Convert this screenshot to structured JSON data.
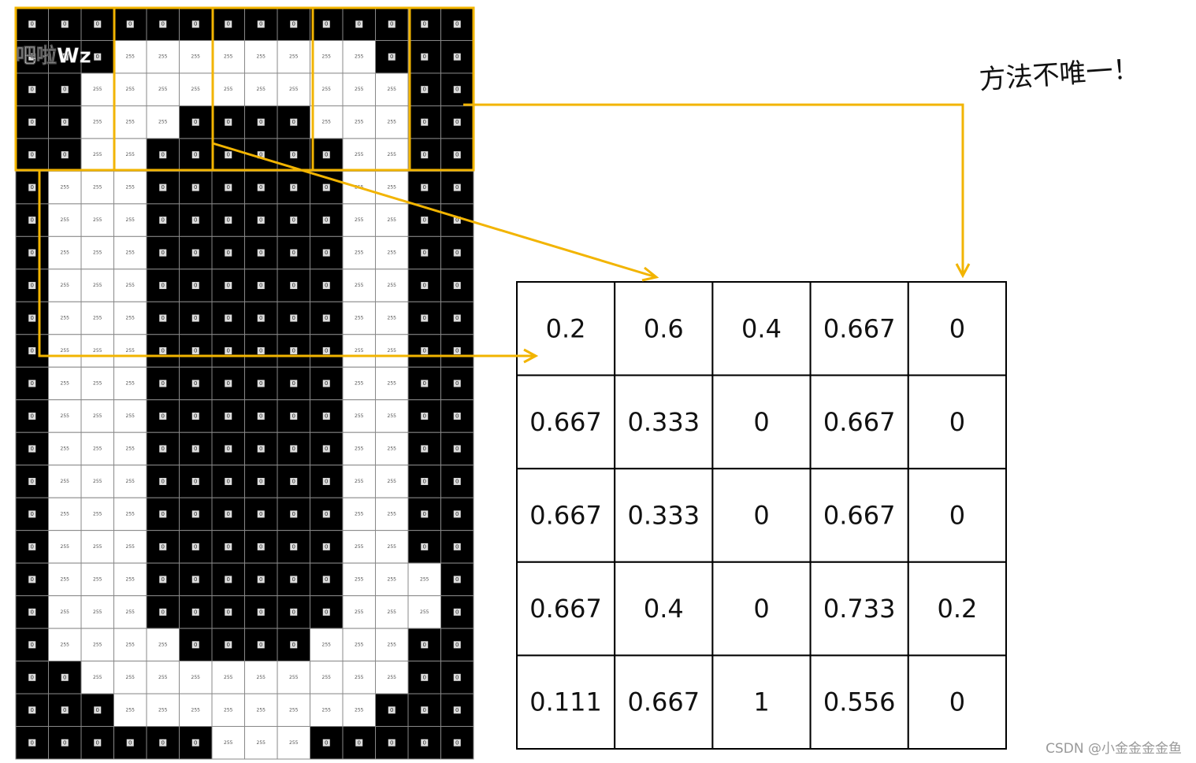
{
  "pixel_grid": {
    "rows": [
      [
        0,
        0,
        0,
        0,
        0,
        0,
        0,
        0,
        0,
        0,
        0,
        0,
        0,
        0
      ],
      [
        0,
        0,
        0,
        255,
        255,
        255,
        255,
        255,
        255,
        255,
        255,
        0,
        0,
        0
      ],
      [
        0,
        0,
        255,
        255,
        255,
        255,
        255,
        255,
        255,
        255,
        255,
        255,
        0,
        0
      ],
      [
        0,
        0,
        255,
        255,
        255,
        0,
        0,
        0,
        0,
        255,
        255,
        255,
        0,
        0
      ],
      [
        0,
        0,
        255,
        255,
        0,
        0,
        0,
        0,
        0,
        0,
        255,
        255,
        0,
        0
      ],
      [
        0,
        255,
        255,
        255,
        0,
        0,
        0,
        0,
        0,
        0,
        255,
        255,
        0,
        0
      ],
      [
        0,
        255,
        255,
        255,
        0,
        0,
        0,
        0,
        0,
        0,
        255,
        255,
        0,
        0
      ],
      [
        0,
        255,
        255,
        255,
        0,
        0,
        0,
        0,
        0,
        0,
        255,
        255,
        0,
        0
      ],
      [
        0,
        255,
        255,
        255,
        0,
        0,
        0,
        0,
        0,
        0,
        255,
        255,
        0,
        0
      ],
      [
        0,
        255,
        255,
        255,
        0,
        0,
        0,
        0,
        0,
        0,
        255,
        255,
        0,
        0
      ],
      [
        0,
        255,
        255,
        255,
        0,
        0,
        0,
        0,
        0,
        0,
        255,
        255,
        0,
        0
      ],
      [
        0,
        255,
        255,
        255,
        0,
        0,
        0,
        0,
        0,
        0,
        255,
        255,
        0,
        0
      ],
      [
        0,
        255,
        255,
        255,
        0,
        0,
        0,
        0,
        0,
        0,
        255,
        255,
        0,
        0
      ],
      [
        0,
        255,
        255,
        255,
        0,
        0,
        0,
        0,
        0,
        0,
        255,
        255,
        0,
        0
      ],
      [
        0,
        255,
        255,
        255,
        0,
        0,
        0,
        0,
        0,
        0,
        255,
        255,
        0,
        0
      ],
      [
        0,
        255,
        255,
        255,
        0,
        0,
        0,
        0,
        0,
        0,
        255,
        255,
        0,
        0
      ],
      [
        0,
        255,
        255,
        255,
        0,
        0,
        0,
        0,
        0,
        0,
        255,
        255,
        0,
        0
      ],
      [
        0,
        255,
        255,
        255,
        0,
        0,
        0,
        0,
        0,
        0,
        255,
        255,
        255,
        0
      ],
      [
        0,
        255,
        255,
        255,
        0,
        0,
        0,
        0,
        0,
        0,
        255,
        255,
        255,
        0
      ],
      [
        0,
        255,
        255,
        255,
        255,
        0,
        0,
        0,
        0,
        255,
        255,
        255,
        0,
        0
      ],
      [
        0,
        0,
        255,
        255,
        255,
        255,
        255,
        255,
        255,
        255,
        255,
        255,
        0,
        0
      ],
      [
        0,
        0,
        0,
        255,
        255,
        255,
        255,
        255,
        255,
        255,
        255,
        0,
        0,
        0
      ],
      [
        0,
        0,
        0,
        0,
        0,
        0,
        255,
        255,
        255,
        0,
        0,
        0,
        0,
        0
      ]
    ]
  },
  "feature_matrix": {
    "rows": [
      [
        0.2,
        0.6,
        0.4,
        0.667,
        0
      ],
      [
        0.667,
        0.333,
        0,
        0.667,
        0
      ],
      [
        0.667,
        0.333,
        0,
        0.667,
        0
      ],
      [
        0.667,
        0.4,
        0,
        0.733,
        0.2
      ],
      [
        0.111,
        0.667,
        1,
        0.556,
        0
      ]
    ]
  },
  "annotation": "方法不唯一！",
  "video_watermark": "吧啦Wz",
  "footer_watermark": "CSDN @小金金金金鱼"
}
